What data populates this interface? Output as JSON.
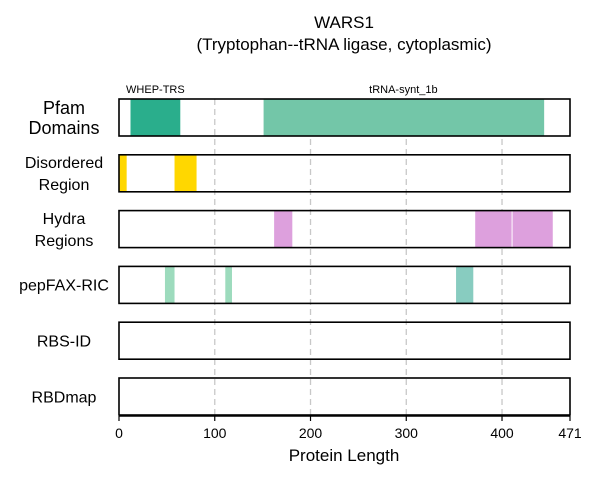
{
  "title": {
    "line1": "WARS1",
    "line2": "(Tryptophan--tRNA ligase, cytoplasmic)"
  },
  "x_axis": {
    "label": "Protein Length",
    "min": 0,
    "max": 471,
    "ticks": [
      {
        "value": 0,
        "label": "0"
      },
      {
        "value": 100,
        "label": "100"
      },
      {
        "value": 200,
        "label": "200"
      },
      {
        "value": 300,
        "label": "300"
      },
      {
        "value": 400,
        "label": "400"
      },
      {
        "value": 471,
        "label": "471"
      }
    ],
    "gridlines": [
      100,
      200,
      300,
      400
    ]
  },
  "tracks": [
    {
      "key": "pfam",
      "label_lines": [
        "Pfam",
        "Domains"
      ],
      "label_size": "large",
      "segments": [
        {
          "start": 12,
          "end": 64,
          "color": "#2aae8c"
        },
        {
          "start": 151,
          "end": 444,
          "color": "#73c6a8"
        }
      ],
      "annotations": [
        {
          "text": "WHEP-TRS",
          "at": 38
        },
        {
          "text": "tRNA-synt_1b",
          "at": 297
        }
      ]
    },
    {
      "key": "disordered",
      "label_lines": [
        "Disordered",
        "Region"
      ],
      "label_size": "normal",
      "segments": [
        {
          "start": 0,
          "end": 8,
          "color": "#ffd700"
        },
        {
          "start": 58,
          "end": 81,
          "color": "#ffd700"
        }
      ]
    },
    {
      "key": "hydra",
      "label_lines": [
        "Hydra",
        "Regions"
      ],
      "label_size": "normal",
      "segments": [
        {
          "start": 162,
          "end": 181,
          "color": "#dda0dd"
        },
        {
          "start": 372,
          "end": 410,
          "color": "#dda0dd"
        },
        {
          "start": 411,
          "end": 453,
          "color": "#dda0dd"
        }
      ]
    },
    {
      "key": "pepfax",
      "label_lines": [
        "pepFAX-RIC"
      ],
      "label_size": "normal",
      "segments": [
        {
          "start": 48,
          "end": 58,
          "color": "#9ddbbd"
        },
        {
          "start": 111,
          "end": 118,
          "color": "#9ddbbd"
        },
        {
          "start": 352,
          "end": 370,
          "color": "#88ccc0"
        }
      ]
    },
    {
      "key": "rbsid",
      "label_lines": [
        "RBS-ID"
      ],
      "label_size": "normal",
      "segments": []
    },
    {
      "key": "rbdmap",
      "label_lines": [
        "RBDmap"
      ],
      "label_size": "normal",
      "segments": []
    }
  ]
}
